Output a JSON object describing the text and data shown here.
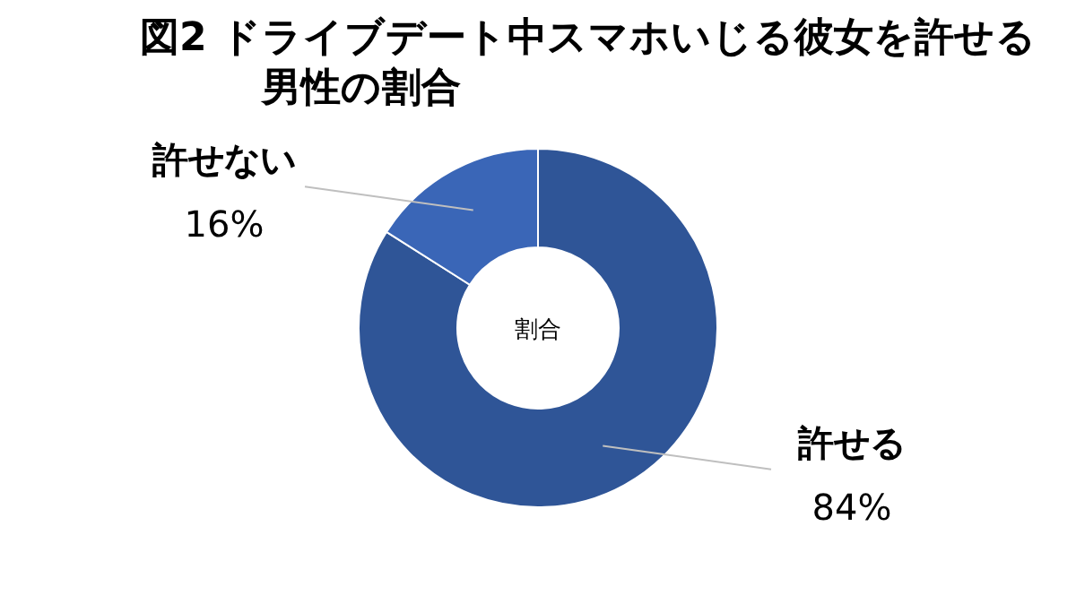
{
  "chart_data": {
    "type": "donut",
    "title": "図2 ドライブデート中スマホいじる彼女を許せる男性の割合",
    "categories": [
      "許せる",
      "許せない"
    ],
    "values": [
      84,
      16
    ],
    "colors": [
      "#2f5597",
      "#3a66b7"
    ],
    "value_labels": [
      "84%",
      "16%"
    ],
    "annotations": [
      "割合"
    ]
  }
}
